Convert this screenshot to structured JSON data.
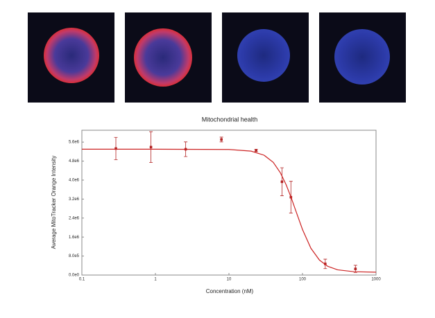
{
  "chart_data": {
    "type": "scatter",
    "title": "Mitochondrial health",
    "xlabel": "Concentration (nM)",
    "ylabel": "Average MitoTracker Orange Intensity",
    "xscale": "log",
    "xlim": [
      0.1,
      1000
    ],
    "xticks": [
      0.1,
      1,
      10,
      100,
      1000
    ],
    "ylim": [
      0,
      6100000
    ],
    "yticks": [
      {
        "value": 0,
        "label": "0.0e0"
      },
      {
        "value": 800000,
        "label": "8.0e5"
      },
      {
        "value": 1600000,
        "label": "1.6e6"
      },
      {
        "value": 2400000,
        "label": "2.4e6"
      },
      {
        "value": 3200000,
        "label": "3.2e6"
      },
      {
        "value": 4000000,
        "label": "4.0e6"
      },
      {
        "value": 4800000,
        "label": "4.8e6"
      },
      {
        "value": 5600000,
        "label": "5.6e6"
      }
    ],
    "series": [
      {
        "type": "scatter",
        "color": "#b22222",
        "x": [
          0.29,
          0.87,
          2.58,
          7.9,
          23.4,
          52.6,
          69.6,
          204,
          525
        ],
        "values": [
          5330000,
          5390000,
          5300000,
          5710000,
          5250000,
          3930000,
          3280000,
          470000,
          260000
        ],
        "errors": [
          470000,
          650000,
          310000,
          100000,
          50000,
          590000,
          670000,
          200000,
          150000
        ]
      },
      {
        "type": "line",
        "color": "#cc2222",
        "x": [
          0.1,
          1,
          10,
          20,
          30,
          40,
          50,
          60,
          70,
          80,
          100,
          130,
          170,
          220,
          300,
          500,
          1000
        ],
        "values": [
          5300000,
          5300000,
          5290000,
          5220000,
          5050000,
          4750000,
          4310000,
          3800000,
          3270000,
          2760000,
          1920000,
          1130000,
          630000,
          370000,
          220000,
          140000,
          120000
        ]
      }
    ]
  }
}
